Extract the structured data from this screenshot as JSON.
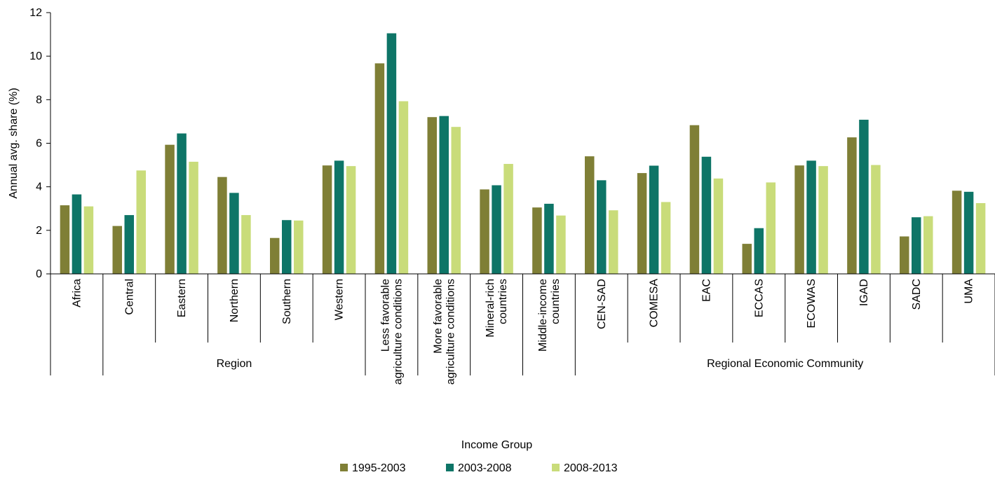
{
  "chart_data": {
    "type": "bar",
    "ylabel": "Annual avg. share (%)",
    "ylim": [
      0,
      12
    ],
    "yticks": [
      0,
      2,
      4,
      6,
      8,
      10,
      12
    ],
    "grid": false,
    "legend_position": "bottom",
    "categories": [
      [
        "Africa"
      ],
      [
        "Central"
      ],
      [
        "Eastern"
      ],
      [
        "Northern"
      ],
      [
        "Southern"
      ],
      [
        "Western"
      ],
      [
        "Less favorable",
        "agriculture conditions"
      ],
      [
        "More favorable",
        "agriculture conditions"
      ],
      [
        "Mineral-rich",
        "countries"
      ],
      [
        "Middle-income",
        "countries"
      ],
      [
        "CEN-SAD"
      ],
      [
        "COMESA"
      ],
      [
        "EAC"
      ],
      [
        "ECCAS"
      ],
      [
        "ECOWAS"
      ],
      [
        "IGAD"
      ],
      [
        "SADC"
      ],
      [
        "UMA"
      ]
    ],
    "groups": [
      {
        "label": "Region",
        "start": 1,
        "end": 5
      },
      {
        "label": "Regional Economic Community",
        "start": 10,
        "end": 17
      }
    ],
    "outer_group_label": "Income Group",
    "series": [
      {
        "name": "1995-2003",
        "color": "#7f7f36",
        "values": [
          3.15,
          2.2,
          5.93,
          4.45,
          1.65,
          4.98,
          9.67,
          7.2,
          3.88,
          3.05,
          5.4,
          4.63,
          6.83,
          1.38,
          4.98,
          6.27,
          1.72,
          3.82
        ]
      },
      {
        "name": "2003-2008",
        "color": "#0e7567",
        "values": [
          3.65,
          2.7,
          6.45,
          3.72,
          2.47,
          5.2,
          11.05,
          7.25,
          4.07,
          3.22,
          4.3,
          4.97,
          5.38,
          2.1,
          5.2,
          7.08,
          2.6,
          3.77
        ]
      },
      {
        "name": "2008-2013",
        "color": "#c9dc7a",
        "values": [
          3.1,
          4.75,
          5.15,
          2.7,
          2.45,
          4.95,
          7.93,
          6.75,
          5.05,
          2.68,
          2.92,
          3.3,
          4.38,
          4.2,
          4.95,
          5.0,
          2.65,
          3.25
        ]
      }
    ]
  }
}
